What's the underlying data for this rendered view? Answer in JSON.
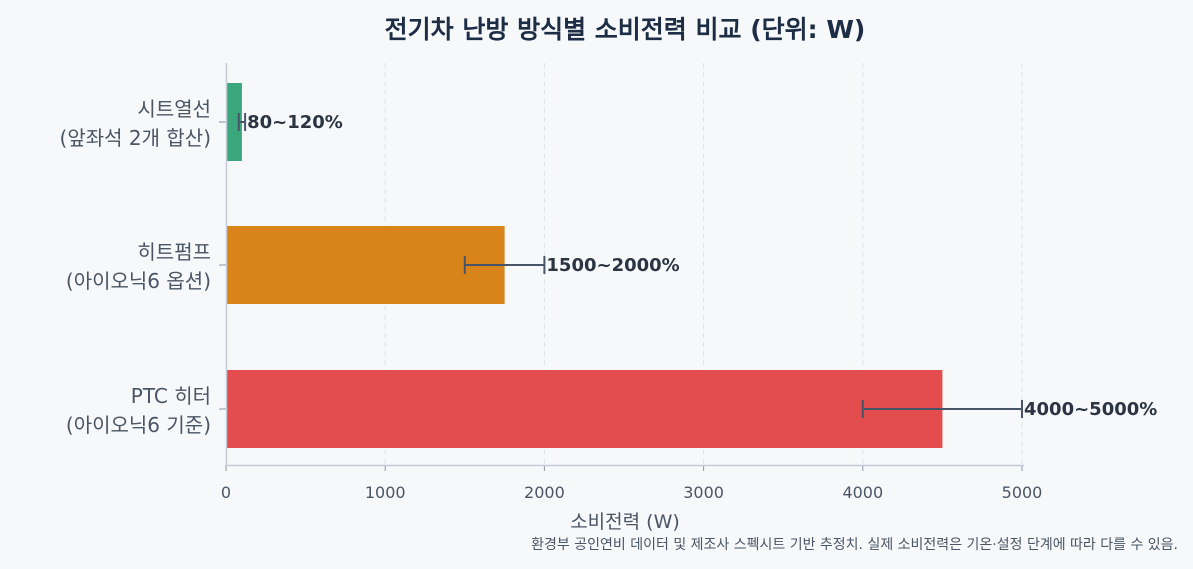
{
  "chart_data": {
    "type": "bar",
    "orientation": "horizontal",
    "title": "전기차 난방 방식별 소비전력 비교 (단위: W)",
    "xlabel": "소비전력 (W)",
    "ylabel": "",
    "xlim": [
      0,
      5000
    ],
    "xticks": [
      "0",
      "1000",
      "2000",
      "3000",
      "4000",
      "5000"
    ],
    "grid": "vertical dashed",
    "categories": [
      [
        "시트열선",
        "(앞좌석 2개 합산)"
      ],
      [
        "히트펌프",
        "(아이오닉6 옵션)"
      ],
      [
        "PTC 히터",
        "(아이오닉6 기준)"
      ]
    ],
    "values": [
      100,
      1750,
      4500
    ],
    "error_ranges": [
      [
        80,
        120
      ],
      [
        1500,
        2000
      ],
      [
        4000,
        5000
      ]
    ],
    "data_labels": [
      "80~120%",
      "1500~2000%",
      "4000~5000%"
    ],
    "colors": [
      "#3aa87c",
      "#d9831b",
      "#e44d4d"
    ],
    "footnote": "환경부 공인연비 데이터 및 제조사 스펙시트 기반 추정치. 실제 소비전력은 기온·설정 단계에 따라 다를 수 있음."
  }
}
